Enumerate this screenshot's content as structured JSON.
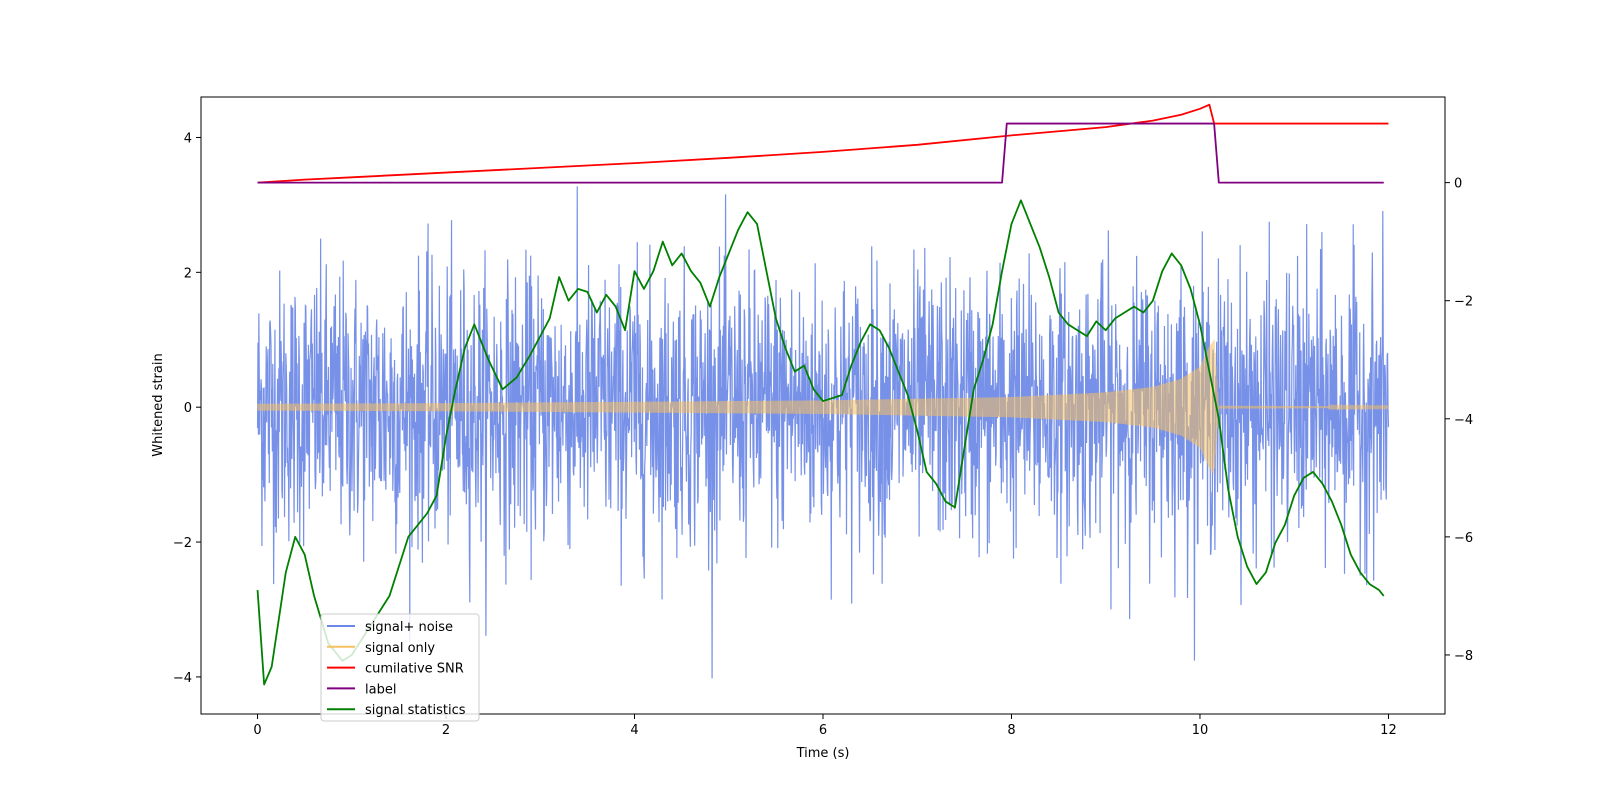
{
  "chart_data": {
    "type": "line",
    "title": "",
    "xlabel": "Time (s)",
    "ylabel": "Whitened strain",
    "y2label": "",
    "xlim": [
      -0.6,
      12.6
    ],
    "ylim": [
      -4.55,
      4.6
    ],
    "y2lim": [
      -9.0,
      1.45
    ],
    "xticks": [
      0,
      2,
      4,
      6,
      8,
      10,
      12
    ],
    "xtick_labels": [
      "0",
      "2",
      "4",
      "6",
      "8",
      "10",
      "12"
    ],
    "yticks": [
      -4,
      -2,
      0,
      2,
      4
    ],
    "ytick_labels": [
      "−4",
      "−2",
      "0",
      "2",
      "4"
    ],
    "y2ticks": [
      -8,
      -6,
      -4,
      -2,
      0
    ],
    "y2tick_labels": [
      "−8",
      "−6",
      "−4",
      "−2",
      "0"
    ],
    "grid": false,
    "legend_position": "lower-left",
    "colors": {
      "signal_noise": "#6b88e6",
      "signal_only": "#f5c060",
      "snr": "#ff0000",
      "label": "#800080",
      "stats": "#008000"
    },
    "legend": [
      {
        "name": "signal+ noise",
        "color": "#6b88e6"
      },
      {
        "name": "signal only",
        "color": "#f5c060"
      },
      {
        "name": "cumilative SNR",
        "color": "#ff0000"
      },
      {
        "name": "label",
        "color": "#800080"
      },
      {
        "name": "signal statistics",
        "color": "#008000"
      }
    ],
    "series": [
      {
        "name": "signal+ noise",
        "axis": "left",
        "description": "dense whitened strain noise, approx. gaussian, std ~1.0, peaks about +/-4.0, duration 0-12 s",
        "t_range": [
          0,
          12
        ],
        "std": 1.0
      },
      {
        "name": "signal only",
        "axis": "left",
        "description": "chirp signal whose amplitude grows from ~0.05 to ~1.0 at merger (~10.15 s), then near zero",
        "t_range": [
          0,
          12
        ],
        "envelope": {
          "x": [
            0,
            2,
            4,
            6,
            8,
            9,
            9.5,
            9.8,
            10.0,
            10.1,
            10.15,
            10.2,
            12
          ],
          "y": [
            0.05,
            0.06,
            0.08,
            0.1,
            0.15,
            0.22,
            0.3,
            0.42,
            0.6,
            0.9,
            1.0,
            0.02,
            0.01
          ]
        }
      },
      {
        "name": "cumilative SNR",
        "axis": "right",
        "x": [
          0,
          0.5,
          1,
          2,
          3,
          4,
          5,
          6,
          7,
          8,
          8.5,
          9,
          9.5,
          9.8,
          10.0,
          10.1,
          10.15,
          10.2,
          12
        ],
        "y": [
          0.0,
          0.05,
          0.09,
          0.17,
          0.25,
          0.33,
          0.42,
          0.52,
          0.64,
          0.8,
          0.87,
          0.94,
          1.05,
          1.15,
          1.25,
          1.32,
          1.0,
          1.0,
          1.0
        ]
      },
      {
        "name": "label",
        "axis": "right",
        "x": [
          0,
          7.9,
          7.95,
          10.15,
          10.2,
          11.95
        ],
        "y": [
          0,
          0,
          1,
          1,
          0,
          0
        ]
      },
      {
        "name": "signal statistics",
        "axis": "right",
        "x": [
          0,
          0.07,
          0.15,
          0.3,
          0.4,
          0.5,
          0.6,
          0.75,
          0.9,
          1.0,
          1.2,
          1.4,
          1.6,
          1.8,
          1.9,
          2.0,
          2.1,
          2.2,
          2.3,
          2.45,
          2.6,
          2.75,
          2.9,
          3.0,
          3.1,
          3.2,
          3.3,
          3.4,
          3.5,
          3.6,
          3.7,
          3.8,
          3.9,
          4.0,
          4.1,
          4.2,
          4.3,
          4.4,
          4.5,
          4.6,
          4.7,
          4.8,
          4.9,
          5.0,
          5.1,
          5.2,
          5.3,
          5.4,
          5.5,
          5.6,
          5.7,
          5.8,
          5.9,
          6.0,
          6.2,
          6.3,
          6.4,
          6.5,
          6.6,
          6.7,
          6.8,
          6.9,
          7.0,
          7.1,
          7.2,
          7.3,
          7.4,
          7.5,
          7.6,
          7.7,
          7.8,
          7.9,
          8.0,
          8.1,
          8.2,
          8.3,
          8.4,
          8.5,
          8.6,
          8.7,
          8.8,
          8.9,
          9.0,
          9.1,
          9.2,
          9.3,
          9.4,
          9.5,
          9.6,
          9.7,
          9.8,
          9.9,
          10.0,
          10.1,
          10.2,
          10.3,
          10.4,
          10.5,
          10.6,
          10.7,
          10.8,
          10.9,
          11.0,
          11.1,
          11.2,
          11.3,
          11.4,
          11.5,
          11.6,
          11.7,
          11.8,
          11.9,
          11.95
        ],
        "y": [
          -6.9,
          -8.5,
          -8.2,
          -6.6,
          -6.0,
          -6.3,
          -7.0,
          -7.8,
          -8.1,
          -8.0,
          -7.5,
          -7.0,
          -6.0,
          -5.6,
          -5.3,
          -4.3,
          -3.5,
          -2.8,
          -2.4,
          -3.0,
          -3.5,
          -3.3,
          -2.9,
          -2.6,
          -2.3,
          -1.6,
          -2.0,
          -1.8,
          -1.85,
          -2.2,
          -1.9,
          -2.1,
          -2.5,
          -1.5,
          -1.8,
          -1.5,
          -1.0,
          -1.4,
          -1.2,
          -1.5,
          -1.7,
          -2.1,
          -1.6,
          -1.2,
          -0.8,
          -0.5,
          -0.7,
          -1.5,
          -2.3,
          -2.8,
          -3.2,
          -3.1,
          -3.5,
          -3.7,
          -3.6,
          -3.1,
          -2.7,
          -2.4,
          -2.5,
          -2.8,
          -3.2,
          -3.6,
          -4.2,
          -4.9,
          -5.1,
          -5.4,
          -5.5,
          -4.5,
          -3.5,
          -3.0,
          -2.4,
          -1.5,
          -0.7,
          -0.3,
          -0.7,
          -1.1,
          -1.6,
          -2.2,
          -2.4,
          -2.5,
          -2.6,
          -2.35,
          -2.5,
          -2.3,
          -2.2,
          -2.1,
          -2.2,
          -2.0,
          -1.5,
          -1.2,
          -1.4,
          -1.8,
          -2.4,
          -3.2,
          -4.0,
          -5.2,
          -6.0,
          -6.5,
          -6.8,
          -6.6,
          -6.1,
          -5.8,
          -5.3,
          -5.0,
          -4.9,
          -5.1,
          -5.4,
          -5.8,
          -6.3,
          -6.6,
          -6.8,
          -6.9,
          -7.0
        ]
      }
    ]
  }
}
